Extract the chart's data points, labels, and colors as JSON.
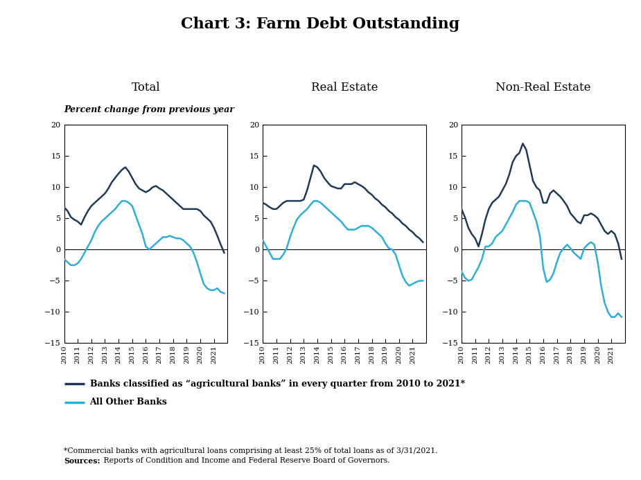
{
  "title": "Chart 3: Farm Debt Outstanding",
  "subtitle": "Percent change from previous year",
  "panel_titles": [
    "Total",
    "Real Estate",
    "Non-Real Estate"
  ],
  "ylim": [
    -15,
    20
  ],
  "yticks": [
    -15,
    -10,
    -5,
    0,
    5,
    10,
    15,
    20
  ],
  "ag_bank_color": "#1b3a5c",
  "other_bank_color": "#29aee0",
  "ag_bank_label": "Banks classified as “agricultural banks” in every quarter from 2010 to 2021*",
  "other_bank_label": "All Other Banks",
  "footnote1": "*Commercial banks with agricultural loans comprising at least 25% of total loans as of 3/31/2021.",
  "footnote2_bold": "Sources:",
  "footnote2_rest": " Reports of Condition and Income and Federal Reserve Board of Governors.",
  "total_ag": [
    6.8,
    6.2,
    5.2,
    4.8,
    4.5,
    4.0,
    5.2,
    6.2,
    7.0,
    7.5,
    8.0,
    8.5,
    9.0,
    9.8,
    10.8,
    11.5,
    12.2,
    12.8,
    13.2,
    12.5,
    11.5,
    10.5,
    9.8,
    9.5,
    9.2,
    9.5,
    10.0,
    10.2,
    9.8,
    9.5,
    9.0,
    8.5,
    8.0,
    7.5,
    7.0,
    6.5,
    6.5,
    6.5,
    6.5,
    6.5,
    6.2,
    5.5,
    5.0,
    4.5,
    3.5,
    2.2,
    0.8,
    -0.5
  ],
  "total_other": [
    -1.5,
    -2.0,
    -2.5,
    -2.5,
    -2.2,
    -1.5,
    -0.5,
    0.5,
    1.5,
    2.8,
    3.8,
    4.5,
    5.0,
    5.5,
    6.0,
    6.5,
    7.2,
    7.8,
    7.8,
    7.5,
    7.0,
    5.5,
    4.0,
    2.5,
    0.5,
    0.0,
    0.5,
    1.0,
    1.5,
    2.0,
    2.0,
    2.2,
    2.0,
    1.8,
    1.8,
    1.5,
    1.0,
    0.5,
    -0.5,
    -2.0,
    -3.8,
    -5.5,
    -6.2,
    -6.5,
    -6.5,
    -6.2,
    -6.8,
    -7.0
  ],
  "re_ag": [
    7.5,
    7.2,
    6.8,
    6.5,
    6.5,
    7.0,
    7.5,
    7.8,
    7.8,
    7.8,
    7.8,
    7.8,
    8.0,
    9.5,
    11.5,
    13.5,
    13.2,
    12.5,
    11.5,
    10.8,
    10.2,
    10.0,
    9.8,
    9.8,
    10.5,
    10.5,
    10.5,
    10.8,
    10.5,
    10.2,
    9.8,
    9.2,
    8.8,
    8.2,
    7.8,
    7.2,
    6.8,
    6.2,
    5.8,
    5.2,
    4.8,
    4.2,
    3.8,
    3.2,
    2.8,
    2.2,
    1.8,
    1.2
  ],
  "re_other": [
    1.5,
    0.5,
    -0.5,
    -1.5,
    -1.5,
    -1.5,
    -0.8,
    0.2,
    2.0,
    3.5,
    4.8,
    5.5,
    6.0,
    6.5,
    7.2,
    7.8,
    7.8,
    7.5,
    7.0,
    6.5,
    6.0,
    5.5,
    5.0,
    4.5,
    3.8,
    3.2,
    3.2,
    3.2,
    3.5,
    3.8,
    3.8,
    3.8,
    3.5,
    3.0,
    2.5,
    2.0,
    1.0,
    0.2,
    0.0,
    -0.8,
    -2.5,
    -4.2,
    -5.2,
    -5.8,
    -5.5,
    -5.2,
    -5.0,
    -5.0
  ],
  "nre_ag": [
    6.5,
    5.2,
    3.5,
    2.5,
    1.8,
    0.5,
    2.5,
    4.8,
    6.5,
    7.5,
    8.0,
    8.5,
    9.5,
    10.5,
    12.0,
    14.0,
    15.0,
    15.5,
    17.0,
    16.0,
    13.5,
    11.0,
    10.0,
    9.5,
    7.5,
    7.5,
    9.0,
    9.5,
    9.0,
    8.5,
    7.8,
    7.0,
    5.8,
    5.2,
    4.5,
    4.2,
    5.5,
    5.5,
    5.8,
    5.5,
    5.0,
    4.0,
    3.0,
    2.5,
    3.0,
    2.5,
    1.0,
    -1.5
  ],
  "nre_other": [
    -3.5,
    -4.5,
    -5.0,
    -4.8,
    -3.8,
    -2.8,
    -1.5,
    0.5,
    0.5,
    1.0,
    2.0,
    2.5,
    3.0,
    4.0,
    5.0,
    6.0,
    7.2,
    7.8,
    7.8,
    7.8,
    7.5,
    6.0,
    4.5,
    2.2,
    -3.0,
    -5.2,
    -4.8,
    -3.8,
    -2.0,
    -0.5,
    0.2,
    0.8,
    0.2,
    -0.5,
    -1.0,
    -1.5,
    0.2,
    0.8,
    1.2,
    0.8,
    -2.0,
    -5.8,
    -8.5,
    -10.0,
    -10.8,
    -10.8,
    -10.2,
    -10.8
  ],
  "n_points": 48
}
